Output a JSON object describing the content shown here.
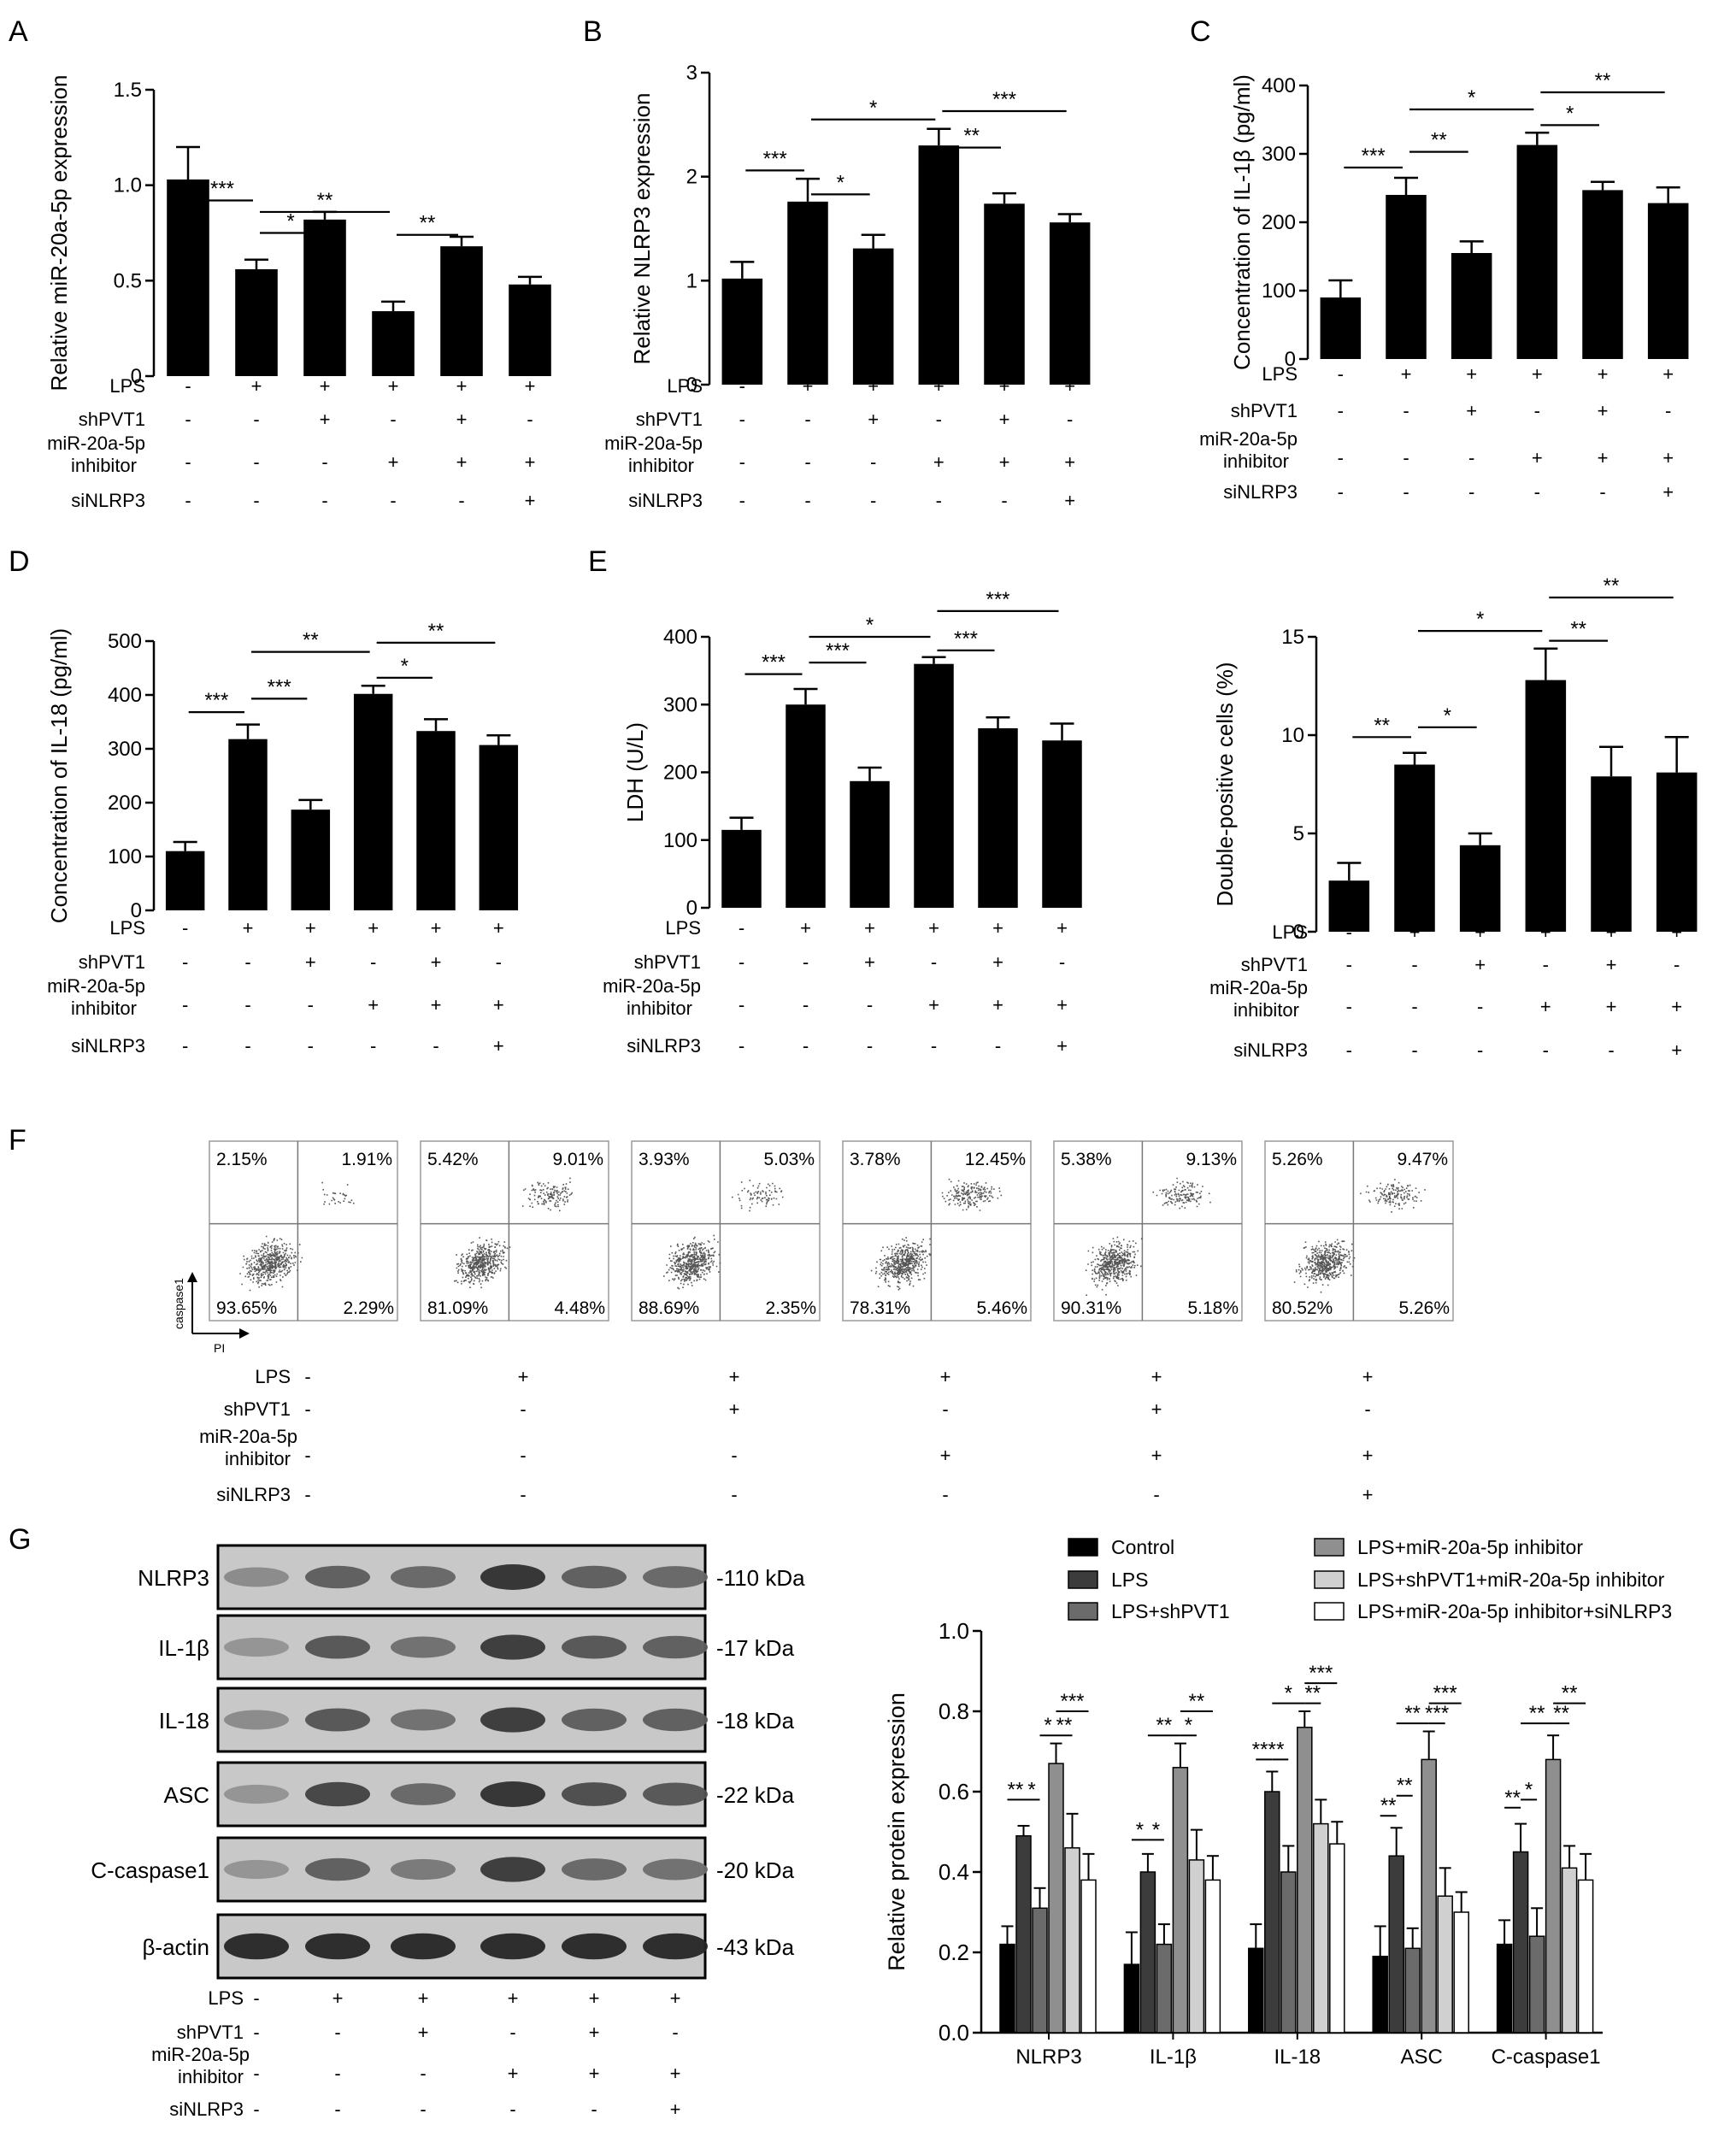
{
  "figure_labels": [
    "A",
    "B",
    "C",
    "D",
    "E",
    "F",
    "G"
  ],
  "treatment_labels": {
    "lps": "LPS",
    "shpvt1": "shPVT1",
    "mir_line1": "miR-20a-5p",
    "mir_line2": "inhibitor",
    "sinlrp3": "siNLRP3"
  },
  "chart_data": [
    {
      "id": "A",
      "type": "bar",
      "ylabel": "Relative miR-20a-5p expression",
      "ylim": [
        0,
        1.5
      ],
      "yticks": [
        "0",
        "0.5",
        "1.0",
        "1.5"
      ],
      "values": [
        1.03,
        0.56,
        0.82,
        0.34,
        0.68,
        0.48
      ],
      "errors": [
        0.17,
        0.05,
        0.04,
        0.05,
        0.05,
        0.04
      ],
      "rows": [
        [
          "-",
          "+",
          "+",
          "+",
          "+",
          "+"
        ],
        [
          "-",
          "-",
          "+",
          "-",
          "+",
          "-"
        ],
        [
          "-",
          "-",
          "-",
          "+",
          "+",
          "+"
        ],
        [
          "-",
          "-",
          "-",
          "-",
          "-",
          "+"
        ]
      ],
      "significance": [
        {
          "from": 0,
          "to": 1,
          "label": "***",
          "level": 0.92
        },
        {
          "from": 1,
          "to": 2,
          "label": "*",
          "level": 0.75
        },
        {
          "from": 1,
          "to": 3,
          "label": "**",
          "level": 0.86
        },
        {
          "from": 3,
          "to": 4,
          "label": "**",
          "level": 0.74
        }
      ]
    },
    {
      "id": "B",
      "type": "bar",
      "ylabel": "Relative NLRP3 expression",
      "ylim": [
        0,
        3
      ],
      "yticks": [
        "0",
        "1",
        "2",
        "3"
      ],
      "values": [
        1.02,
        1.76,
        1.31,
        2.3,
        1.74,
        1.56
      ],
      "errors": [
        0.16,
        0.22,
        0.13,
        0.16,
        0.1,
        0.08
      ],
      "rows": [
        [
          "-",
          "+",
          "+",
          "+",
          "+",
          "+"
        ],
        [
          "-",
          "-",
          "+",
          "-",
          "+",
          "-"
        ],
        [
          "-",
          "-",
          "-",
          "+",
          "+",
          "+"
        ],
        [
          "-",
          "-",
          "-",
          "-",
          "-",
          "+"
        ]
      ],
      "significance": [
        {
          "from": 0,
          "to": 1,
          "label": "***",
          "level": 2.06
        },
        {
          "from": 1,
          "to": 2,
          "label": "*",
          "level": 1.83
        },
        {
          "from": 1,
          "to": 3,
          "label": "*",
          "level": 2.55
        },
        {
          "from": 3,
          "to": 4,
          "label": "**",
          "level": 2.28
        },
        {
          "from": 3,
          "to": 5,
          "label": "***",
          "level": 2.63
        }
      ]
    },
    {
      "id": "C",
      "type": "bar",
      "ylabel": "Concentration of IL-1β (pg/ml)",
      "ylim": [
        0,
        400
      ],
      "yticks": [
        "0",
        "100",
        "200",
        "300",
        "400"
      ],
      "values": [
        90,
        240,
        155,
        313,
        247,
        228
      ],
      "errors": [
        25,
        25,
        17,
        18,
        12,
        23
      ],
      "rows": [
        [
          "-",
          "+",
          "+",
          "+",
          "+",
          "+"
        ],
        [
          "-",
          "-",
          "+",
          "-",
          "+",
          "-"
        ],
        [
          "-",
          "-",
          "-",
          "+",
          "+",
          "+"
        ],
        [
          "-",
          "-",
          "-",
          "-",
          "-",
          "+"
        ]
      ],
      "significance": [
        {
          "from": 0,
          "to": 1,
          "label": "***",
          "level": 280
        },
        {
          "from": 1,
          "to": 2,
          "label": "**",
          "level": 303
        },
        {
          "from": 1,
          "to": 3,
          "label": "*",
          "level": 365
        },
        {
          "from": 3,
          "to": 4,
          "label": "*",
          "level": 342
        },
        {
          "from": 3,
          "to": 5,
          "label": "**",
          "level": 390
        }
      ]
    },
    {
      "id": "D",
      "type": "bar",
      "ylabel": "Concentration of IL-18 (pg/ml)",
      "ylim": [
        0,
        500
      ],
      "yticks": [
        "0",
        "100",
        "200",
        "300",
        "400",
        "500"
      ],
      "values": [
        110,
        318,
        187,
        402,
        333,
        307
      ],
      "errors": [
        17,
        27,
        18,
        15,
        22,
        18
      ],
      "rows": [
        [
          "-",
          "+",
          "+",
          "+",
          "+",
          "+"
        ],
        [
          "-",
          "-",
          "+",
          "-",
          "+",
          "-"
        ],
        [
          "-",
          "-",
          "-",
          "+",
          "+",
          "+"
        ],
        [
          "-",
          "-",
          "-",
          "-",
          "-",
          "+"
        ]
      ],
      "significance": [
        {
          "from": 0,
          "to": 1,
          "label": "***",
          "level": 368
        },
        {
          "from": 1,
          "to": 2,
          "label": "***",
          "level": 393
        },
        {
          "from": 1,
          "to": 3,
          "label": "**",
          "level": 480
        },
        {
          "from": 3,
          "to": 4,
          "label": "*",
          "level": 432
        },
        {
          "from": 3,
          "to": 5,
          "label": "**",
          "level": 497
        }
      ]
    },
    {
      "id": "E",
      "type": "bar",
      "ylabel": "LDH (U/L)",
      "ylim": [
        0,
        400
      ],
      "yticks": [
        "0",
        "100",
        "200",
        "300",
        "400"
      ],
      "values": [
        115,
        300,
        187,
        360,
        265,
        247
      ],
      "errors": [
        18,
        23,
        20,
        10,
        16,
        25
      ],
      "rows": [
        [
          "-",
          "+",
          "+",
          "+",
          "+",
          "+"
        ],
        [
          "-",
          "-",
          "+",
          "-",
          "+",
          "-"
        ],
        [
          "-",
          "-",
          "-",
          "+",
          "+",
          "+"
        ],
        [
          "-",
          "-",
          "-",
          "-",
          "-",
          "+"
        ]
      ],
      "significance": [
        {
          "from": 0,
          "to": 1,
          "label": "***",
          "level": 345
        },
        {
          "from": 1,
          "to": 2,
          "label": "***",
          "level": 362
        },
        {
          "from": 1,
          "to": 3,
          "label": "*",
          "level": 400
        },
        {
          "from": 3,
          "to": 4,
          "label": "***",
          "level": 380
        },
        {
          "from": 3,
          "to": 5,
          "label": "***",
          "level": 438
        }
      ]
    },
    {
      "id": "E2",
      "type": "bar",
      "ylabel": "Double-positive cells (%)",
      "ylim": [
        0,
        15
      ],
      "yticks": [
        "0",
        "5",
        "10",
        "15"
      ],
      "values": [
        2.6,
        8.5,
        4.4,
        12.8,
        7.9,
        8.1
      ],
      "errors": [
        0.9,
        0.6,
        0.6,
        1.6,
        1.5,
        1.8
      ],
      "rows": [
        [
          "-",
          "+",
          "+",
          "+",
          "+",
          "+"
        ],
        [
          "-",
          "-",
          "+",
          "-",
          "+",
          "-"
        ],
        [
          "-",
          "-",
          "-",
          "+",
          "+",
          "+"
        ],
        [
          "-",
          "-",
          "-",
          "-",
          "-",
          "+"
        ]
      ],
      "significance": [
        {
          "from": 0,
          "to": 1,
          "label": "**",
          "level": 9.9
        },
        {
          "from": 1,
          "to": 2,
          "label": "*",
          "level": 10.4
        },
        {
          "from": 1,
          "to": 3,
          "label": "*",
          "level": 15.3
        },
        {
          "from": 3,
          "to": 4,
          "label": "**",
          "level": 14.8
        },
        {
          "from": 3,
          "to": 5,
          "label": "**",
          "level": 17.0
        }
      ]
    },
    {
      "id": "G",
      "type": "bar",
      "ylabel": "Relative protein expression",
      "ylim": [
        0,
        1.0
      ],
      "yticks": [
        "0.0",
        "0.2",
        "0.4",
        "0.6",
        "0.8",
        "1.0"
      ],
      "categories": [
        "NLRP3",
        "IL-1β",
        "IL-18",
        "ASC",
        "C-caspase1"
      ],
      "series": [
        {
          "name": "Control",
          "color": "#000000",
          "values": [
            0.22,
            0.17,
            0.21,
            0.19,
            0.22
          ],
          "errors": [
            0.045,
            0.08,
            0.06,
            0.075,
            0.06
          ]
        },
        {
          "name": "LPS",
          "color": "#3c3c3c",
          "values": [
            0.49,
            0.4,
            0.6,
            0.44,
            0.45
          ],
          "errors": [
            0.025,
            0.045,
            0.05,
            0.07,
            0.07
          ]
        },
        {
          "name": "LPS+shPVT1",
          "color": "#6b6b6b",
          "values": [
            0.31,
            0.22,
            0.4,
            0.21,
            0.24
          ],
          "errors": [
            0.05,
            0.05,
            0.065,
            0.05,
            0.07
          ]
        },
        {
          "name": "LPS+miR-20a-5p inhibitor",
          "color": "#8f8f8f",
          "values": [
            0.67,
            0.66,
            0.76,
            0.68,
            0.68
          ],
          "errors": [
            0.05,
            0.06,
            0.04,
            0.07,
            0.06
          ]
        },
        {
          "name": "LPS+shPVT1+miR-20a-5p inhibitor",
          "color": "#d0d0d0",
          "values": [
            0.46,
            0.43,
            0.52,
            0.34,
            0.41
          ],
          "errors": [
            0.085,
            0.075,
            0.06,
            0.07,
            0.055
          ]
        },
        {
          "name": "LPS+miR-20a-5p inhibitor+siNLRP3",
          "color": "#ffffff",
          "values": [
            0.38,
            0.38,
            0.47,
            0.3,
            0.38
          ],
          "errors": [
            0.065,
            0.06,
            0.055,
            0.05,
            0.065
          ]
        }
      ],
      "significance": [
        {
          "group": 0,
          "from": 0,
          "to": 1,
          "label": "**",
          "level": 0.58
        },
        {
          "group": 0,
          "from": 1,
          "to": 2,
          "label": "*",
          "level": 0.58
        },
        {
          "group": 0,
          "from": 2,
          "to": 3,
          "label": "*",
          "level": 0.74
        },
        {
          "group": 0,
          "from": 3,
          "to": 4,
          "label": "**",
          "level": 0.74
        },
        {
          "group": 0,
          "from": 3,
          "to": 5,
          "label": "***",
          "level": 0.8
        },
        {
          "group": 1,
          "from": 0,
          "to": 1,
          "label": "*",
          "level": 0.48
        },
        {
          "group": 1,
          "from": 1,
          "to": 2,
          "label": "*",
          "level": 0.48
        },
        {
          "group": 1,
          "from": 1,
          "to": 3,
          "label": "**",
          "level": 0.74
        },
        {
          "group": 1,
          "from": 3,
          "to": 4,
          "label": "*",
          "level": 0.74
        },
        {
          "group": 1,
          "from": 3,
          "to": 5,
          "label": "**",
          "level": 0.8
        },
        {
          "group": 2,
          "from": 0,
          "to": 1,
          "label": "***",
          "level": 0.68
        },
        {
          "group": 2,
          "from": 1,
          "to": 2,
          "label": "*",
          "level": 0.68
        },
        {
          "group": 2,
          "from": 1,
          "to": 3,
          "label": "*",
          "level": 0.82
        },
        {
          "group": 2,
          "from": 3,
          "to": 4,
          "label": "**",
          "level": 0.82
        },
        {
          "group": 2,
          "from": 3,
          "to": 5,
          "label": "***",
          "level": 0.87
        },
        {
          "group": 3,
          "from": 0,
          "to": 1,
          "label": "**",
          "level": 0.54
        },
        {
          "group": 3,
          "from": 1,
          "to": 2,
          "label": "**",
          "level": 0.59
        },
        {
          "group": 3,
          "from": 1,
          "to": 3,
          "label": "**",
          "level": 0.77
        },
        {
          "group": 3,
          "from": 3,
          "to": 4,
          "label": "***",
          "level": 0.77
        },
        {
          "group": 3,
          "from": 3,
          "to": 5,
          "label": "***",
          "level": 0.82
        },
        {
          "group": 4,
          "from": 0,
          "to": 1,
          "label": "**",
          "level": 0.56
        },
        {
          "group": 4,
          "from": 1,
          "to": 2,
          "label": "*",
          "level": 0.58
        },
        {
          "group": 4,
          "from": 1,
          "to": 3,
          "label": "**",
          "level": 0.77
        },
        {
          "group": 4,
          "from": 3,
          "to": 4,
          "label": "**",
          "level": 0.77
        },
        {
          "group": 4,
          "from": 3,
          "to": 5,
          "label": "**",
          "level": 0.82
        }
      ]
    }
  ],
  "flow_cytometry": {
    "y_axis_label": "caspase1",
    "x_axis_label": "PI",
    "plots": [
      {
        "ul": "2.15%",
        "ur": "1.91%",
        "ll": "93.65%",
        "lr": "2.29%"
      },
      {
        "ul": "5.42%",
        "ur": "9.01%",
        "ll": "81.09%",
        "lr": "4.48%"
      },
      {
        "ul": "3.93%",
        "ur": "5.03%",
        "ll": "88.69%",
        "lr": "2.35%"
      },
      {
        "ul": "3.78%",
        "ur": "12.45%",
        "ll": "78.31%",
        "lr": "5.46%"
      },
      {
        "ul": "5.38%",
        "ur": "9.13%",
        "ll": "90.31%",
        "lr": "5.18%"
      },
      {
        "ul": "5.26%",
        "ur": "9.47%",
        "ll": "80.52%",
        "lr": "5.26%"
      }
    ]
  },
  "western_blot": {
    "bands": [
      {
        "name": "NLRP3",
        "kda": "-110  kDa",
        "intensity": [
          0.35,
          0.6,
          0.55,
          0.85,
          0.6,
          0.55
        ]
      },
      {
        "name": "IL-1β",
        "kda": "-17  kDa",
        "intensity": [
          0.3,
          0.65,
          0.5,
          0.8,
          0.65,
          0.6
        ]
      },
      {
        "name": "IL-18",
        "kda": "-18  kDa",
        "intensity": [
          0.35,
          0.65,
          0.5,
          0.8,
          0.6,
          0.6
        ]
      },
      {
        "name": "ASC",
        "kda": "-22  kDa",
        "intensity": [
          0.3,
          0.75,
          0.55,
          0.85,
          0.7,
          0.65
        ]
      },
      {
        "name": "C-caspase1",
        "kda": "-20  kDa",
        "intensity": [
          0.3,
          0.6,
          0.45,
          0.8,
          0.55,
          0.5
        ]
      },
      {
        "name": "β-actin",
        "kda": "-43  kDa",
        "intensity": [
          0.9,
          0.9,
          0.9,
          0.9,
          0.9,
          0.9
        ]
      }
    ]
  }
}
